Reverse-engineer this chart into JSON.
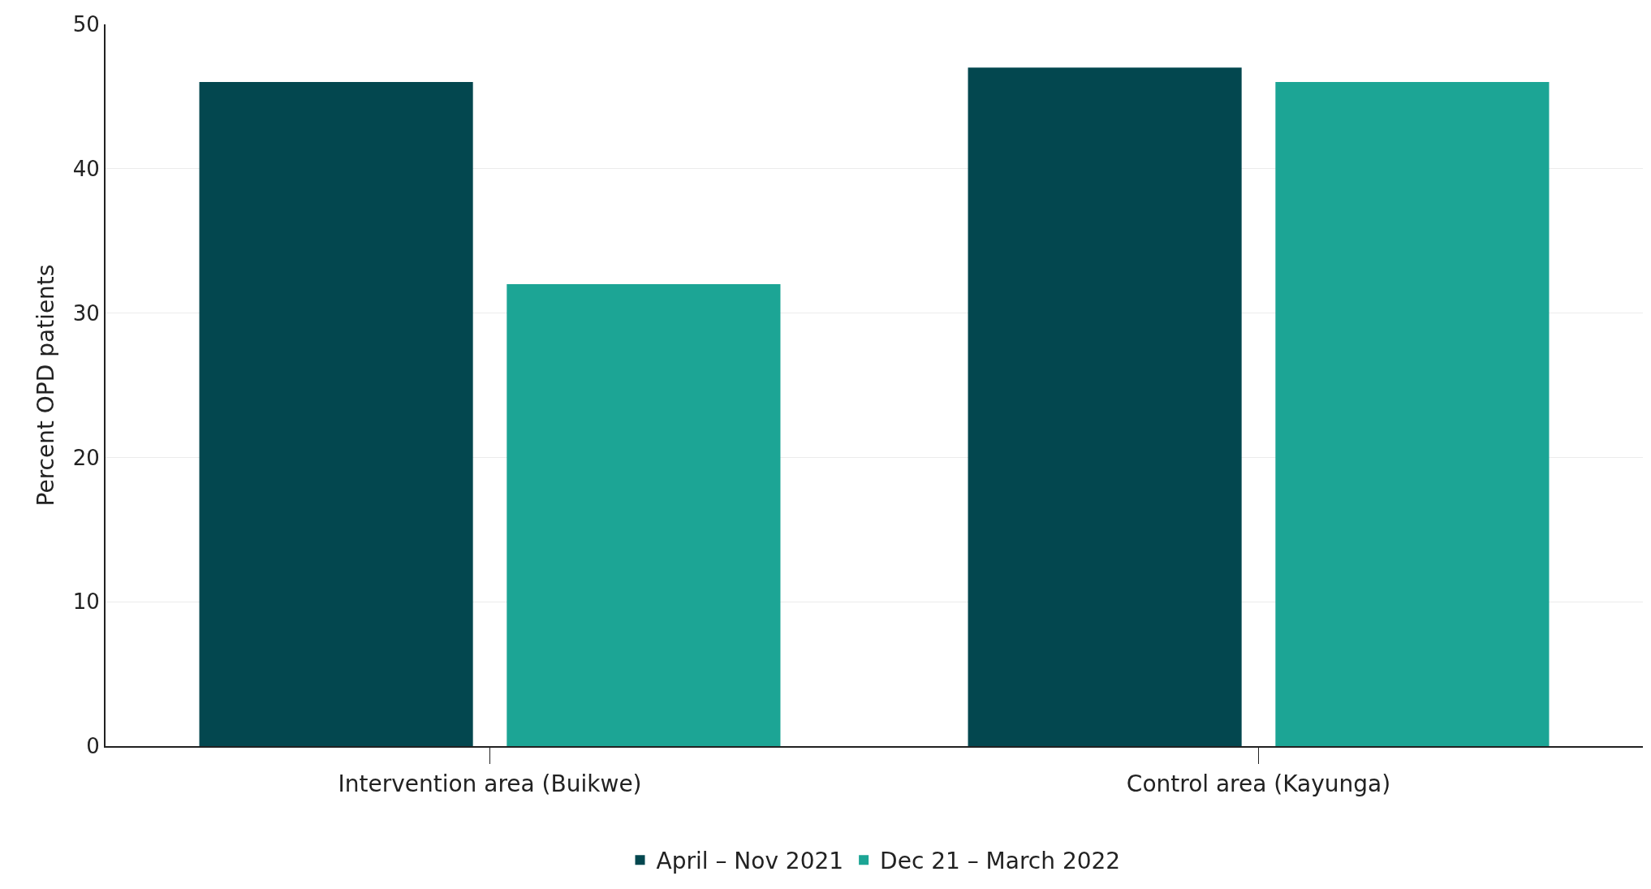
{
  "chart_data": {
    "type": "bar",
    "ylabel": "Percent OPD patients",
    "categories": [
      "Intervention area (Buikwe)",
      "Control area (Kayunga)"
    ],
    "series": [
      {
        "name": "April – Nov 2021",
        "color": "#03474f",
        "values": [
          46,
          47
        ]
      },
      {
        "name": "Dec 21 – March 2022",
        "color": "#1ca595",
        "values": [
          32,
          46
        ]
      }
    ],
    "ylim": [
      0,
      50
    ],
    "yticks": [
      0,
      10,
      20,
      30,
      40,
      50
    ],
    "grid": "y",
    "legend": "bottom"
  }
}
